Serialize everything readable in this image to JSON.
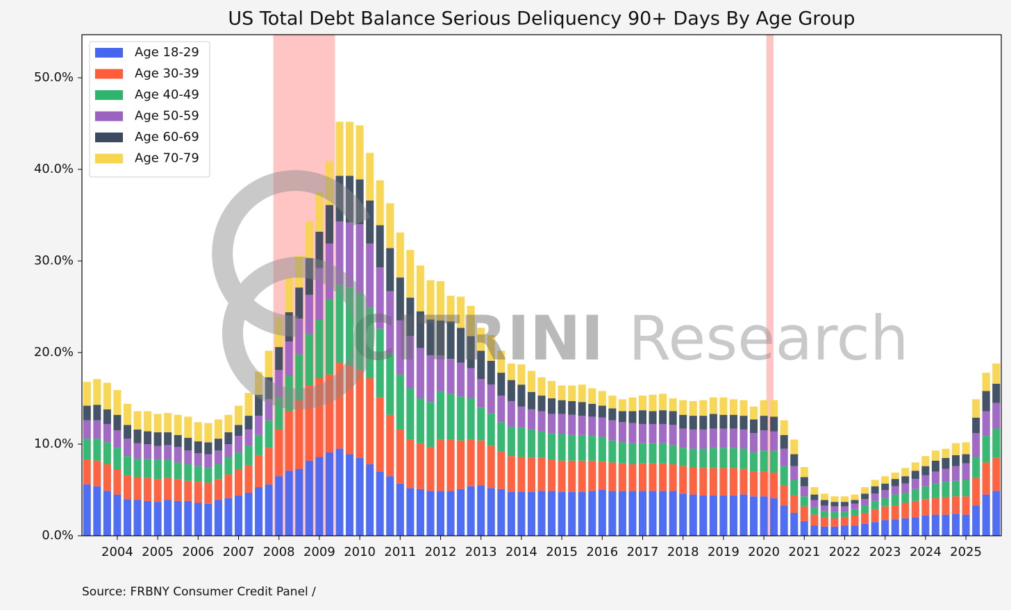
{
  "chart_data": {
    "type": "stacked_bar",
    "title": "US Total Debt Balance Serious Deliquency 90+ Days By Age Group",
    "source": "Source: FRBNY Consumer Credit Panel /",
    "watermark": [
      "CITRINI",
      "Research"
    ],
    "categories": [
      null,
      null,
      null,
      "2004",
      null,
      null,
      null,
      "2005",
      null,
      null,
      null,
      "2006",
      null,
      null,
      null,
      "2007",
      null,
      null,
      null,
      "2008",
      null,
      null,
      null,
      "2009",
      null,
      null,
      null,
      "2010",
      null,
      null,
      null,
      "2011",
      null,
      null,
      null,
      "2012",
      null,
      null,
      null,
      "2013",
      null,
      null,
      null,
      "2014",
      null,
      null,
      null,
      "2015",
      null,
      null,
      null,
      "2016",
      null,
      null,
      null,
      "2017",
      null,
      null,
      null,
      "2018",
      null,
      null,
      null,
      "2019",
      null,
      null,
      null,
      "2020",
      null,
      null,
      null,
      "2021",
      null,
      null,
      null,
      "2022",
      null,
      null,
      null,
      "2023",
      null,
      null,
      null,
      "2024",
      null,
      null,
      null,
      "2025",
      null,
      null,
      null
    ],
    "series": [
      {
        "name": "Age 18-29",
        "color": "#4666f2",
        "values": [
          5.6,
          5.4,
          4.9,
          4.5,
          4.0,
          3.9,
          3.8,
          3.7,
          3.9,
          3.8,
          3.8,
          3.6,
          3.5,
          3.9,
          4.1,
          4.4,
          4.7,
          5.3,
          5.6,
          6.5,
          7.1,
          7.3,
          8.2,
          8.6,
          9.1,
          9.5,
          8.9,
          8.5,
          7.8,
          7.0,
          6.5,
          5.7,
          5.2,
          5.1,
          4.9,
          4.9,
          4.9,
          5.1,
          5.4,
          5.5,
          5.2,
          5.1,
          4.8,
          4.8,
          4.8,
          4.9,
          4.9,
          4.8,
          4.8,
          4.8,
          4.9,
          5.0,
          4.9,
          4.9,
          4.9,
          4.9,
          4.9,
          4.9,
          4.9,
          4.6,
          4.5,
          4.4,
          4.4,
          4.4,
          4.4,
          4.5,
          4.3,
          4.3,
          4.1,
          3.3,
          2.5,
          1.6,
          1.1,
          1.0,
          1.0,
          1.1,
          1.1,
          1.3,
          1.5,
          1.7,
          1.8,
          1.9,
          2.0,
          2.2,
          2.3,
          2.3,
          2.4,
          2.3,
          3.3,
          4.5,
          4.9
        ]
      },
      {
        "name": "Age 30-39",
        "color": "#ff5c38",
        "values": [
          2.7,
          2.8,
          2.9,
          2.7,
          2.6,
          2.5,
          2.5,
          2.5,
          2.4,
          2.4,
          2.2,
          2.3,
          2.3,
          2.3,
          2.6,
          2.8,
          3.0,
          3.5,
          4.0,
          5.1,
          6.5,
          7.5,
          8.2,
          8.6,
          8.5,
          9.4,
          9.7,
          9.6,
          9.4,
          8.1,
          6.7,
          5.9,
          5.3,
          5.0,
          4.8,
          5.6,
          5.6,
          5.3,
          5.1,
          4.9,
          4.6,
          4.1,
          3.9,
          3.8,
          3.7,
          3.6,
          3.4,
          3.4,
          3.4,
          3.4,
          3.3,
          3.1,
          3.1,
          3.0,
          2.9,
          3.0,
          3.0,
          3.0,
          2.9,
          3.0,
          3.0,
          3.0,
          3.0,
          3.0,
          3.0,
          2.8,
          2.7,
          2.7,
          2.8,
          2.2,
          1.9,
          1.6,
          1.2,
          1.0,
          0.9,
          0.9,
          1.1,
          1.2,
          1.4,
          1.5,
          1.5,
          1.7,
          1.8,
          1.8,
          1.8,
          1.9,
          1.9,
          2.0,
          3.0,
          3.5,
          3.6
        ]
      },
      {
        "name": "Age 40-49",
        "color": "#2eb46c",
        "values": [
          2.3,
          2.4,
          2.4,
          2.4,
          2.1,
          2.0,
          2.1,
          2.1,
          2.0,
          1.8,
          1.8,
          1.7,
          1.6,
          1.6,
          1.9,
          1.9,
          2.1,
          2.2,
          3.0,
          3.5,
          3.9,
          5.0,
          5.6,
          6.4,
          8.2,
          8.5,
          8.5,
          8.3,
          7.7,
          7.5,
          6.7,
          6.0,
          5.6,
          4.9,
          4.9,
          5.3,
          5.0,
          4.8,
          4.5,
          3.6,
          3.6,
          3.2,
          3.2,
          3.2,
          3.1,
          2.9,
          2.9,
          2.9,
          2.8,
          2.8,
          2.7,
          2.7,
          2.4,
          2.3,
          2.3,
          2.2,
          2.2,
          2.2,
          2.1,
          2.0,
          2.0,
          2.1,
          2.2,
          2.2,
          2.2,
          2.2,
          2.1,
          2.3,
          2.4,
          2.1,
          1.7,
          1.1,
          0.8,
          0.7,
          0.7,
          0.6,
          0.7,
          0.8,
          0.9,
          0.9,
          1.2,
          1.1,
          1.3,
          1.4,
          1.6,
          1.7,
          1.7,
          1.8,
          2.3,
          2.9,
          3.2
        ]
      },
      {
        "name": "Age 50-59",
        "color": "#9c62c2",
        "values": [
          2.0,
          2.0,
          2.0,
          1.9,
          1.9,
          1.7,
          1.6,
          1.5,
          1.6,
          1.7,
          1.5,
          1.4,
          1.5,
          1.5,
          1.4,
          1.8,
          1.8,
          2.1,
          2.3,
          3.0,
          3.7,
          3.9,
          4.3,
          5.6,
          6.1,
          6.9,
          7.1,
          7.6,
          7.0,
          6.7,
          6.8,
          5.9,
          5.7,
          5.5,
          5.1,
          3.9,
          3.8,
          3.7,
          3.3,
          3.1,
          3.1,
          2.9,
          2.8,
          2.3,
          2.2,
          2.2,
          2.1,
          2.2,
          2.2,
          2.1,
          2.1,
          2.1,
          2.2,
          2.2,
          2.2,
          2.1,
          2.1,
          2.1,
          2.2,
          2.1,
          2.1,
          2.1,
          2.1,
          2.1,
          2.1,
          2.1,
          2.1,
          2.2,
          2.1,
          1.9,
          1.5,
          1.1,
          0.8,
          0.6,
          0.6,
          0.6,
          0.6,
          0.7,
          0.8,
          0.9,
          0.9,
          1.0,
          1.1,
          1.2,
          1.3,
          1.4,
          1.6,
          1.8,
          2.6,
          2.7,
          2.8
        ]
      },
      {
        "name": "Age 60-69",
        "color": "#3b4a5e",
        "values": [
          1.6,
          1.7,
          1.6,
          1.7,
          1.5,
          1.5,
          1.4,
          1.5,
          1.4,
          1.3,
          1.4,
          1.3,
          1.3,
          1.3,
          1.3,
          1.2,
          1.5,
          2.3,
          2.4,
          2.5,
          3.2,
          3.4,
          4.0,
          4.0,
          4.2,
          5.0,
          5.1,
          4.9,
          4.7,
          4.6,
          4.7,
          4.7,
          4.2,
          4.0,
          3.9,
          3.8,
          4.1,
          3.8,
          3.5,
          3.1,
          2.6,
          2.5,
          2.3,
          2.4,
          1.9,
          1.7,
          1.7,
          1.5,
          1.5,
          1.5,
          1.4,
          1.3,
          1.3,
          1.2,
          1.3,
          1.5,
          1.4,
          1.5,
          1.5,
          1.5,
          1.5,
          1.5,
          1.6,
          1.5,
          1.5,
          1.5,
          1.5,
          1.6,
          1.6,
          1.5,
          1.3,
          1.0,
          0.6,
          0.6,
          0.5,
          0.5,
          0.4,
          0.6,
          0.8,
          0.7,
          0.8,
          0.8,
          0.9,
          1.0,
          1.2,
          1.2,
          1.2,
          1.0,
          1.7,
          2.2,
          2.1
        ]
      },
      {
        "name": "Age 70-79",
        "color": "#f8d54e",
        "values": [
          2.6,
          2.8,
          2.9,
          2.7,
          2.3,
          2.0,
          2.2,
          2.0,
          2.1,
          2.2,
          2.3,
          2.1,
          2.1,
          2.1,
          1.9,
          2.1,
          2.5,
          2.5,
          2.9,
          3.2,
          3.8,
          3.5,
          4.0,
          4.3,
          4.8,
          5.9,
          5.9,
          5.9,
          5.2,
          4.9,
          4.9,
          4.9,
          5.2,
          5.0,
          4.3,
          4.3,
          2.8,
          3.4,
          3.3,
          2.5,
          2.8,
          2.4,
          1.8,
          2.2,
          2.3,
          2.0,
          1.9,
          1.6,
          1.7,
          1.9,
          1.7,
          1.6,
          1.4,
          1.3,
          1.5,
          1.6,
          1.8,
          1.8,
          1.4,
          1.6,
          1.6,
          1.7,
          1.8,
          1.9,
          1.7,
          1.7,
          1.4,
          1.7,
          1.8,
          1.6,
          1.6,
          1.1,
          0.8,
          0.7,
          0.6,
          0.6,
          0.6,
          0.7,
          0.7,
          0.8,
          0.7,
          0.9,
          0.9,
          1.1,
          1.1,
          1.0,
          1.3,
          1.3,
          2.0,
          2.0,
          2.2
        ]
      }
    ],
    "ylim": [
      0,
      54.7
    ],
    "yticks": [
      {
        "value": 0,
        "label": "0.0%"
      },
      {
        "value": 10,
        "label": "10.0%"
      },
      {
        "value": 20,
        "label": "20.0%"
      },
      {
        "value": 30,
        "label": "30.0%"
      },
      {
        "value": 40,
        "label": "40.0%"
      },
      {
        "value": 50,
        "label": "50.0%"
      }
    ],
    "shaded_periods": [
      {
        "start": 2008,
        "end": 2009.5,
        "color": "#ff8080"
      },
      {
        "start": 2020.2,
        "end": 2020.35,
        "color": "#ff8080"
      }
    ],
    "legend": "upper left",
    "grid": false
  }
}
